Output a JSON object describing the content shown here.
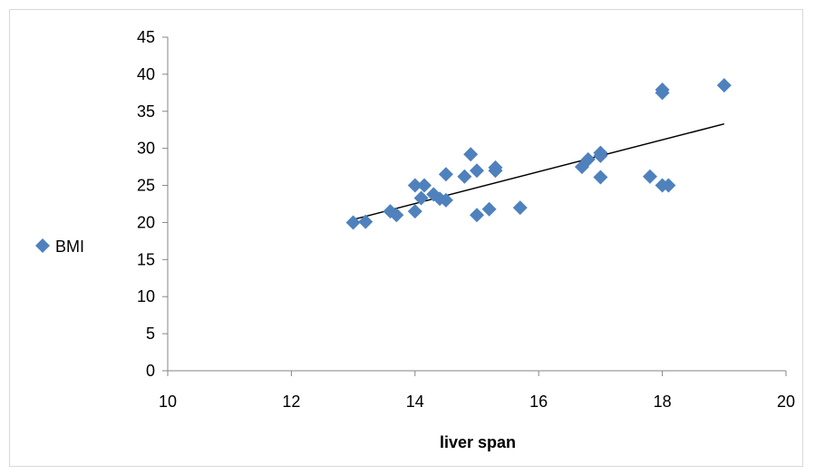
{
  "chart_data": {
    "type": "scatter",
    "title": "",
    "xlabel": "liver span",
    "ylabel": "",
    "xlim": [
      10,
      20
    ],
    "ylim": [
      0,
      45
    ],
    "x_ticks": [
      "10",
      "12",
      "14",
      "16",
      "18",
      "20"
    ],
    "y_ticks": [
      "0",
      "5",
      "10",
      "15",
      "20",
      "25",
      "30",
      "35",
      "40",
      "45"
    ],
    "grid": false,
    "legend_position": "left",
    "series": [
      {
        "name": "BMI",
        "color": "#4f81bd",
        "marker": "diamond",
        "points": [
          {
            "x": 13.0,
            "y": 20.0
          },
          {
            "x": 13.2,
            "y": 20.1
          },
          {
            "x": 13.6,
            "y": 21.5
          },
          {
            "x": 13.7,
            "y": 21.0
          },
          {
            "x": 14.0,
            "y": 21.5
          },
          {
            "x": 14.0,
            "y": 25.0
          },
          {
            "x": 14.1,
            "y": 23.3
          },
          {
            "x": 14.15,
            "y": 25.0
          },
          {
            "x": 14.3,
            "y": 23.8
          },
          {
            "x": 14.4,
            "y": 23.2
          },
          {
            "x": 14.5,
            "y": 23.0
          },
          {
            "x": 14.5,
            "y": 26.5
          },
          {
            "x": 14.8,
            "y": 26.2
          },
          {
            "x": 14.9,
            "y": 29.2
          },
          {
            "x": 15.0,
            "y": 27.0
          },
          {
            "x": 15.0,
            "y": 21.0
          },
          {
            "x": 15.2,
            "y": 21.8
          },
          {
            "x": 15.3,
            "y": 27.0
          },
          {
            "x": 15.3,
            "y": 27.4
          },
          {
            "x": 15.7,
            "y": 22.0
          },
          {
            "x": 16.7,
            "y": 27.5
          },
          {
            "x": 16.8,
            "y": 28.5
          },
          {
            "x": 17.0,
            "y": 29.0
          },
          {
            "x": 17.0,
            "y": 29.4
          },
          {
            "x": 17.0,
            "y": 26.1
          },
          {
            "x": 17.8,
            "y": 26.2
          },
          {
            "x": 18.0,
            "y": 25.0
          },
          {
            "x": 18.0,
            "y": 37.5
          },
          {
            "x": 18.0,
            "y": 37.9
          },
          {
            "x": 18.1,
            "y": 25.0
          },
          {
            "x": 19.0,
            "y": 38.5
          }
        ]
      }
    ],
    "trendline": {
      "type": "linear",
      "color": "#000000",
      "points": [
        {
          "x": 13.0,
          "y": 20.4
        },
        {
          "x": 19.0,
          "y": 33.3
        }
      ]
    }
  }
}
